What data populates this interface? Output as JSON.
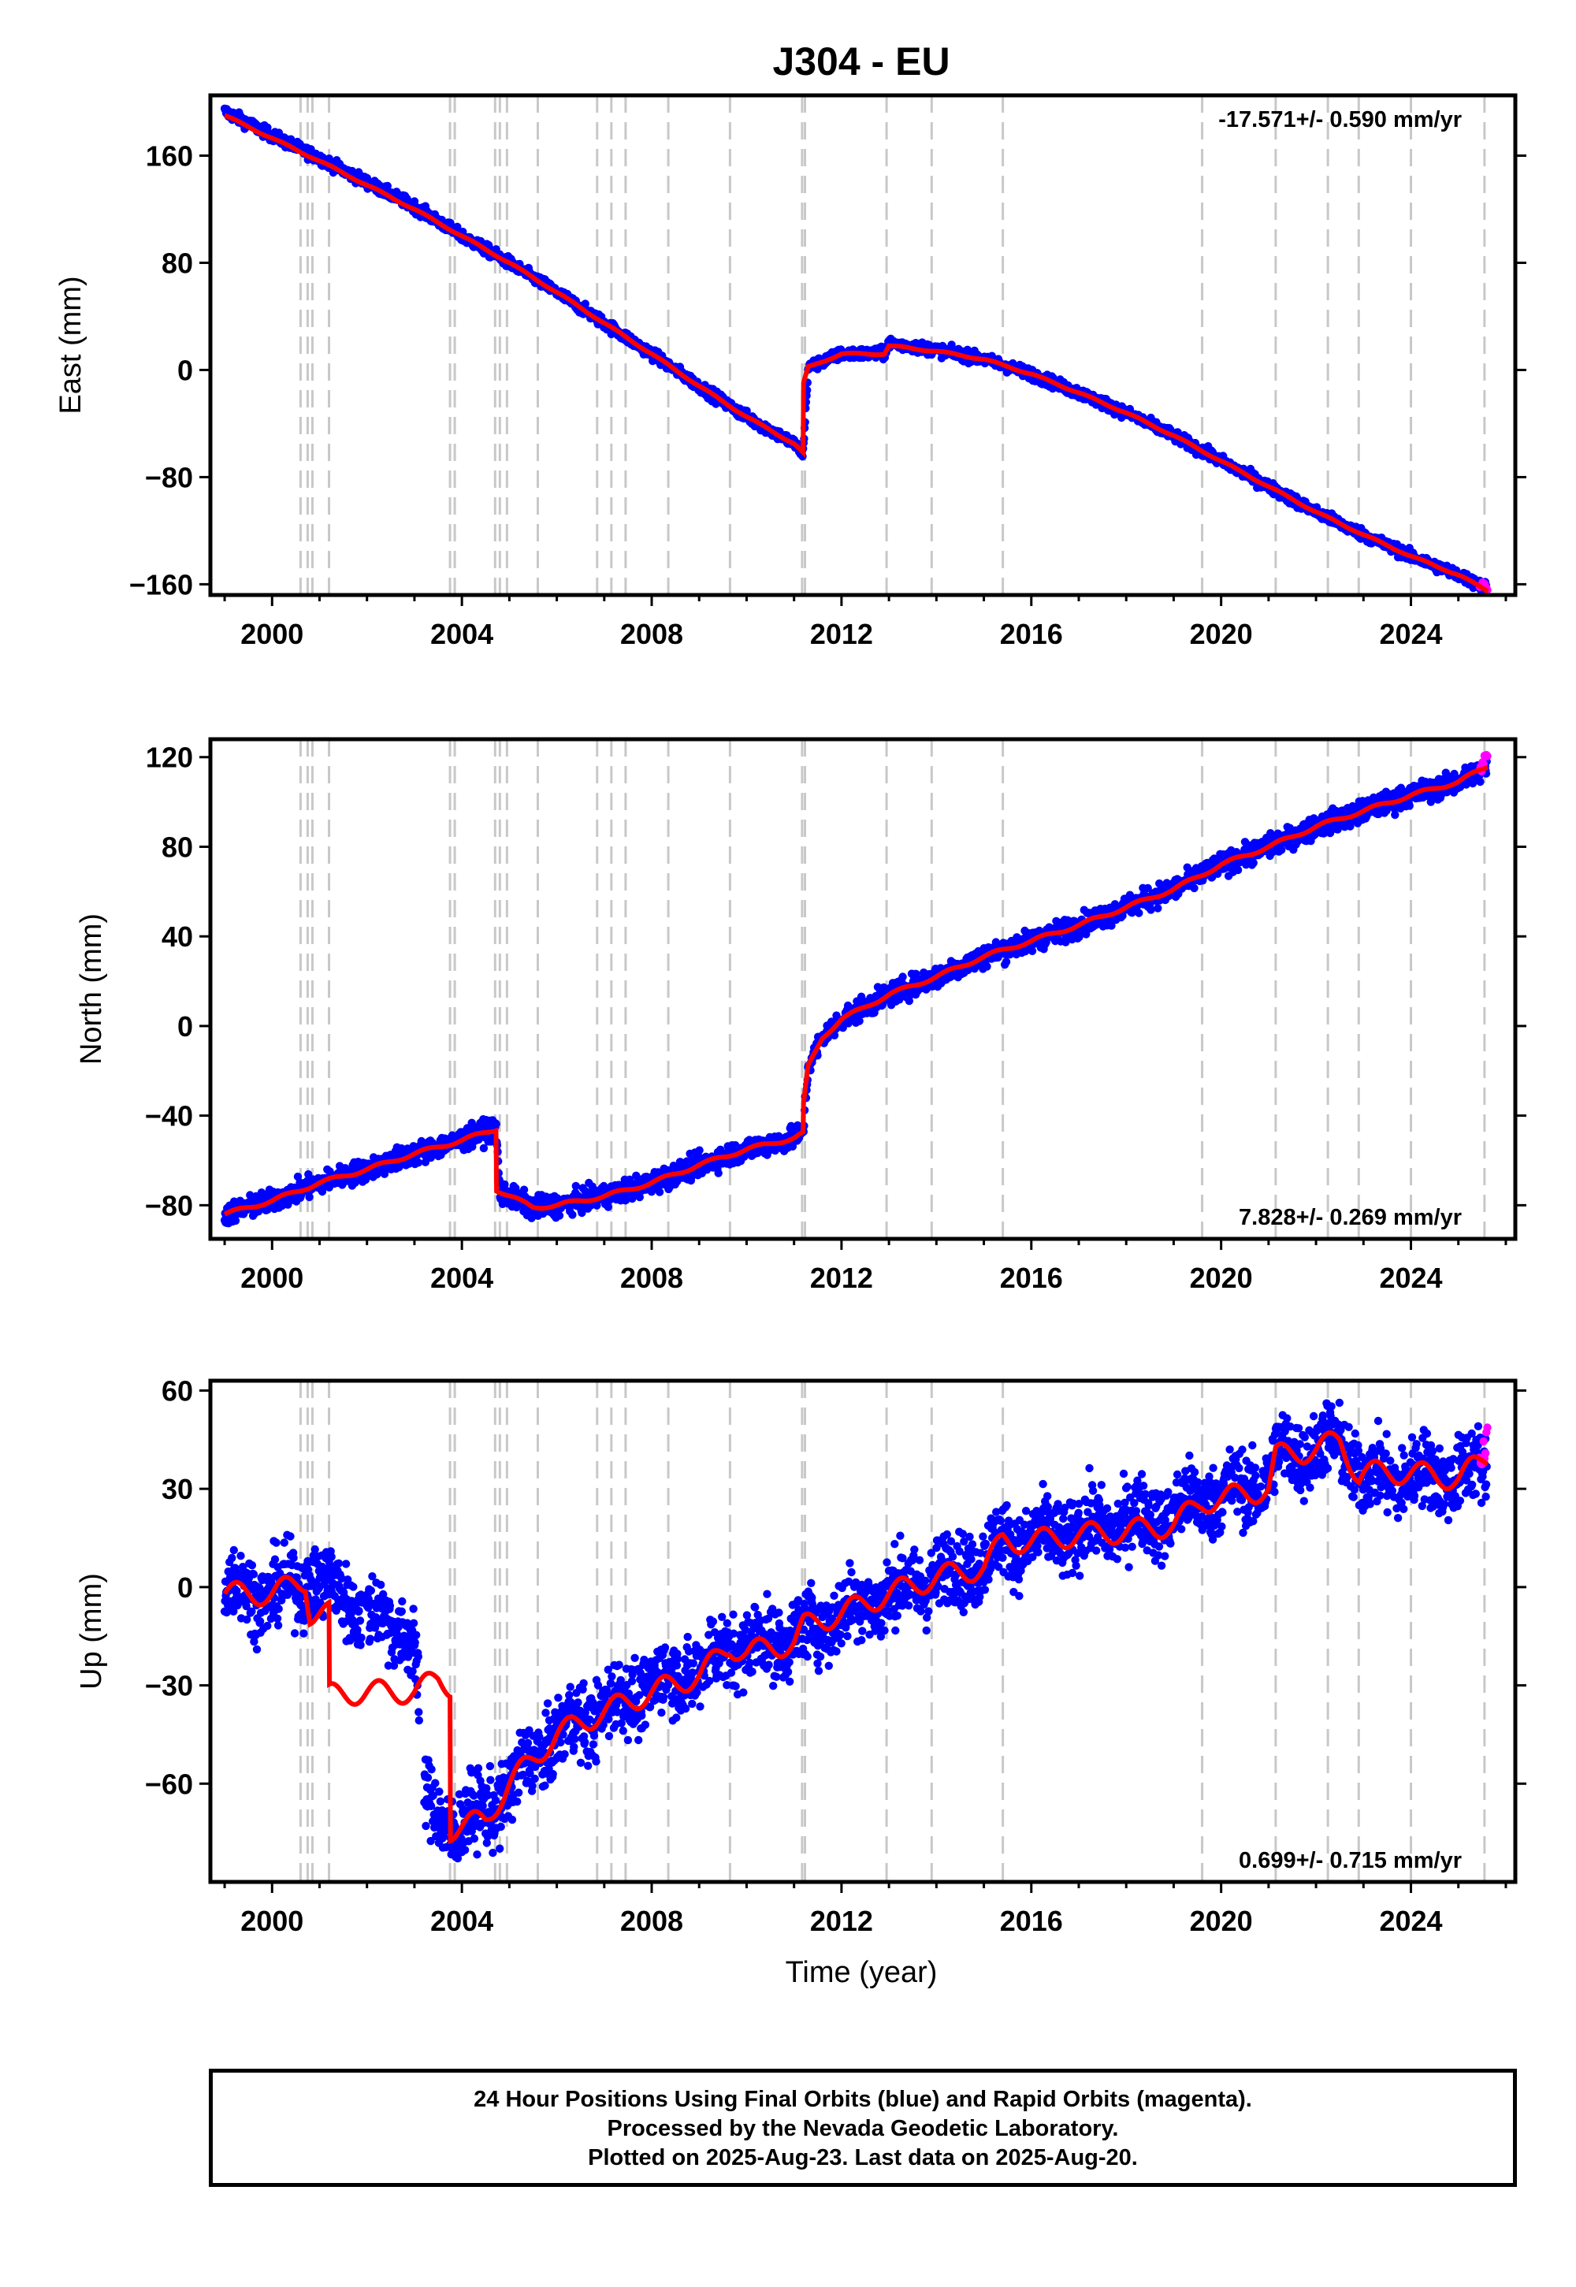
{
  "title": "J304 - EU",
  "xlabel": "Time (year)",
  "footer": {
    "line1": "24 Hour Positions Using Final Orbits (blue) and Rapid Orbits (magenta).",
    "line2": "Processed by the Nevada Geodetic Laboratory.",
    "line3": "Plotted on 2025-Aug-23. Last data on 2025-Aug-20."
  },
  "colors": {
    "final_orbits": "#0000ff",
    "rapid_orbits": "#ff00ff",
    "model": "#ff0000",
    "steps": "#c8c8c8"
  },
  "chart_data": [
    {
      "type": "scatter",
      "panel": "east",
      "ylabel": "East (mm)",
      "annotation": "-17.571+/- 0.590 mm/yr",
      "annotation_position": "top-right",
      "xlim": [
        1998.7,
        2026.2
      ],
      "ylim": [
        -168,
        205
      ],
      "xticks": [
        2000,
        2004,
        2008,
        2012,
        2016,
        2020,
        2024
      ],
      "yticks": [
        160,
        80,
        0,
        -80,
        -160
      ],
      "ytick_labels": [
        "160",
        "80",
        "0",
        "−80",
        "−160"
      ],
      "step_lines_x": [
        2000.6,
        2000.75,
        2000.85,
        2001.2,
        2003.75,
        2003.85,
        2004.7,
        2004.8,
        2004.95,
        2005.6,
        2006.85,
        2007.15,
        2007.45,
        2008.35,
        2009.65,
        2011.17,
        2011.23,
        2012.95,
        2013.9,
        2015.4,
        2019.6,
        2021.15,
        2022.25,
        2022.9,
        2024.0,
        2025.55
      ],
      "model_breaks": [
        2011.19,
        2012.9
      ],
      "series": [
        {
          "name": "Final Orbits",
          "role": "final",
          "scatter": 3,
          "x": [
            1999.0,
            2000.0,
            2001.0,
            2002.0,
            2003.0,
            2004.0,
            2005.0,
            2006.0,
            2007.0,
            2008.0,
            2009.0,
            2010.0,
            2011.0,
            2011.19,
            2011.3,
            2012.0,
            2012.9,
            2013.0,
            2014.0,
            2015.0,
            2016.0,
            2017.0,
            2018.0,
            2019.0,
            2020.0,
            2021.0,
            2022.0,
            2023.0,
            2024.0,
            2025.0,
            2025.6
          ],
          "y": [
            193,
            175,
            158,
            140,
            122,
            100,
            80,
            58,
            35,
            12,
            -12,
            -35,
            -55,
            -62,
            2,
            12,
            12,
            20,
            15,
            8,
            -3,
            -17,
            -32,
            -49,
            -68,
            -87,
            -106,
            -123,
            -139,
            -153,
            -163
          ]
        },
        {
          "name": "Rapid Orbits",
          "role": "rapid",
          "scatter": 3,
          "x": [
            2025.45,
            2025.62
          ],
          "y": [
            -159,
            -164
          ]
        },
        {
          "name": "Model",
          "role": "model",
          "x": [
            1999.0,
            2000.0,
            2001.0,
            2002.0,
            2003.0,
            2004.0,
            2005.0,
            2006.0,
            2007.0,
            2008.0,
            2009.0,
            2010.0,
            2011.0,
            2011.19,
            2011.2,
            2011.3,
            2012.0,
            2012.9,
            2013.0,
            2014.0,
            2015.0,
            2016.0,
            2017.0,
            2018.0,
            2019.0,
            2020.0,
            2021.0,
            2022.0,
            2023.0,
            2024.0,
            2025.0,
            2025.62
          ],
          "y": [
            190,
            173,
            156,
            138,
            120,
            100,
            80,
            58,
            35,
            12,
            -12,
            -35,
            -55,
            -62,
            -10,
            2,
            12,
            12,
            18,
            14,
            8,
            -3,
            -17,
            -32,
            -49,
            -68,
            -87,
            -106,
            -123,
            -139,
            -153,
            -165
          ]
        }
      ]
    },
    {
      "type": "scatter",
      "panel": "north",
      "ylabel": "North (mm)",
      "annotation": "7.828+/- 0.269 mm/yr",
      "annotation_position": "bottom-right",
      "xlim": [
        1998.7,
        2026.2
      ],
      "ylim": [
        -95,
        128
      ],
      "xticks": [
        2000,
        2004,
        2008,
        2012,
        2016,
        2020,
        2024
      ],
      "yticks": [
        120,
        80,
        40,
        0,
        -40,
        -80
      ],
      "ytick_labels": [
        "120",
        "80",
        "40",
        "0",
        "−40",
        "−80"
      ],
      "step_lines_x": [
        2000.6,
        2000.75,
        2000.85,
        2001.2,
        2003.75,
        2003.85,
        2004.7,
        2004.8,
        2004.95,
        2005.6,
        2006.85,
        2007.15,
        2007.45,
        2008.35,
        2009.65,
        2011.17,
        2011.23,
        2012.95,
        2013.9,
        2015.4,
        2019.6,
        2021.15,
        2022.25,
        2022.9,
        2024.0,
        2025.55
      ],
      "model_breaks": [
        2004.72
      ],
      "series": [
        {
          "name": "Final Orbits",
          "role": "final",
          "scatter": 3.5,
          "x": [
            1999.0,
            2000.0,
            2001.0,
            2002.0,
            2003.0,
            2004.0,
            2004.72,
            2004.8,
            2005.5,
            2006.0,
            2007.0,
            2008.0,
            2009.0,
            2010.0,
            2011.0,
            2011.19,
            2011.3,
            2011.6,
            2012.0,
            2013.0,
            2014.0,
            2015.0,
            2016.0,
            2017.0,
            2018.0,
            2019.0,
            2020.0,
            2021.0,
            2022.0,
            2023.0,
            2024.0,
            2025.0,
            2025.6
          ],
          "y": [
            -84,
            -78,
            -70,
            -64,
            -57,
            -51,
            -45,
            -74,
            -81,
            -80,
            -76,
            -70,
            -62,
            -55,
            -50,
            -47,
            -18,
            -5,
            3,
            14,
            22,
            31,
            38,
            45,
            53,
            61,
            72,
            80,
            89,
            96,
            103,
            109,
            115
          ]
        },
        {
          "name": "Rapid Orbits",
          "role": "rapid",
          "scatter": 3,
          "x": [
            2025.45,
            2025.62
          ],
          "y": [
            114,
            121
          ]
        },
        {
          "name": "Model",
          "role": "model",
          "x": [
            1999.0,
            2000.0,
            2001.0,
            2002.0,
            2003.0,
            2004.0,
            2004.72,
            2004.73,
            2005.5,
            2006.0,
            2007.0,
            2008.0,
            2009.0,
            2010.0,
            2011.0,
            2011.19,
            2011.2,
            2011.3,
            2011.6,
            2012.0,
            2013.0,
            2014.0,
            2015.0,
            2016.0,
            2017.0,
            2018.0,
            2019.0,
            2020.0,
            2021.0,
            2022.0,
            2023.0,
            2024.0,
            2025.0,
            2025.62
          ],
          "y": [
            -84,
            -78,
            -70,
            -64,
            -57,
            -51,
            -46,
            -73,
            -81,
            -80,
            -76,
            -70,
            -62,
            -55,
            -50,
            -48,
            -35,
            -18,
            -5,
            3,
            14,
            22,
            31,
            38,
            45,
            53,
            61,
            72,
            80,
            89,
            96,
            103,
            109,
            116
          ]
        }
      ]
    },
    {
      "type": "scatter",
      "panel": "up",
      "ylabel": "Up (mm)",
      "annotation": "0.699+/- 0.715 mm/yr",
      "annotation_position": "bottom-right",
      "xlim": [
        1998.7,
        2026.2
      ],
      "ylim": [
        -90,
        63
      ],
      "xticks": [
        2000,
        2004,
        2008,
        2012,
        2016,
        2020,
        2024
      ],
      "yticks": [
        60,
        30,
        0,
        -30,
        -60
      ],
      "ytick_labels": [
        "60",
        "30",
        "0",
        "−30",
        "−60"
      ],
      "step_lines_x": [
        2000.6,
        2000.75,
        2000.85,
        2001.2,
        2003.75,
        2003.85,
        2004.7,
        2004.8,
        2004.95,
        2005.6,
        2006.85,
        2007.15,
        2007.45,
        2008.35,
        2009.65,
        2011.17,
        2011.23,
        2012.95,
        2013.9,
        2015.4,
        2019.6,
        2021.15,
        2022.25,
        2022.9,
        2024.0,
        2025.55
      ],
      "model_breaks": [
        2001.2,
        2003.75
      ],
      "gaps": [
        [
          2001.9,
          2002.0
        ],
        [
          2003.1,
          2003.2
        ]
      ],
      "series": [
        {
          "name": "Final Orbits",
          "role": "final",
          "scatter": 8,
          "x": [
            1999.0,
            2000.0,
            2000.8,
            2001.2,
            2002.0,
            2003.0,
            2003.2,
            2003.7,
            2004.0,
            2004.8,
            2005.5,
            2006.0,
            2007.0,
            2008.0,
            2009.0,
            2009.65,
            2010.0,
            2011.0,
            2012.0,
            2013.0,
            2014.0,
            2015.0,
            2015.4,
            2016.0,
            2017.0,
            2018.0,
            2019.0,
            2019.6,
            2020.0,
            2021.0,
            2021.15,
            2022.0,
            2022.5,
            2022.9,
            2023.0,
            2024.0,
            2025.0,
            2025.6
          ],
          "y": [
            0,
            -2,
            2,
            0,
            -8,
            -15,
            -65,
            -72,
            -73,
            -65,
            -52,
            -45,
            -37,
            -30,
            -25,
            -18,
            -18,
            -15,
            -8,
            -2,
            3,
            8,
            14,
            14,
            17,
            20,
            22,
            28,
            28,
            32,
            40,
            42,
            44,
            36,
            33,
            34,
            34,
            38
          ]
        },
        {
          "name": "Rapid Orbits",
          "role": "rapid",
          "scatter": 6,
          "x": [
            2025.45,
            2025.62
          ],
          "y": [
            35,
            50
          ]
        },
        {
          "name": "Model",
          "role": "model",
          "x": [
            1999.0,
            2000.0,
            2000.7,
            2000.8,
            2001.2,
            2001.21,
            2002.0,
            2003.0,
            2003.5,
            2003.75,
            2003.76,
            2004.5,
            2005.0,
            2006.0,
            2007.0,
            2008.0,
            2009.0,
            2009.65,
            2010.0,
            2011.0,
            2011.2,
            2012.0,
            2013.0,
            2014.0,
            2015.0,
            2015.4,
            2016.0,
            2017.0,
            2018.0,
            2019.0,
            2019.6,
            2020.0,
            2021.0,
            2021.15,
            2022.0,
            2022.5,
            2022.9,
            2023.0,
            2024.0,
            2025.0,
            2025.62
          ],
          "y": [
            -2,
            -2,
            2,
            -8,
            -8,
            -33,
            -32,
            -32,
            -28,
            -30,
            -74,
            -71,
            -60,
            -45,
            -38,
            -32,
            -27,
            -18,
            -20,
            -17,
            -12,
            -8,
            -2,
            3,
            6,
            14,
            14,
            16,
            17,
            19,
            26,
            27,
            30,
            40,
            42,
            45,
            34,
            35,
            35,
            33,
            40
          ]
        }
      ]
    }
  ]
}
